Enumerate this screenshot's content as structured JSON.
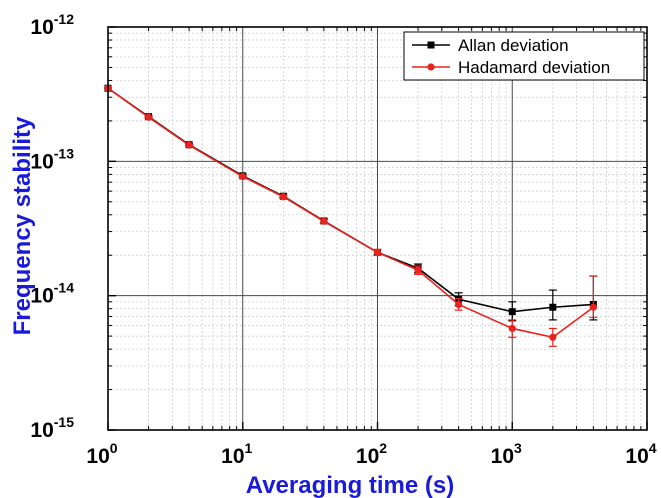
{
  "chart_data": {
    "type": "line",
    "title": "",
    "xlabel": "Averaging time (s)",
    "ylabel": "Frequency stability",
    "x_scale": "log",
    "y_scale": "log",
    "xlim": [
      1,
      10000
    ],
    "ylim": [
      1e-15,
      1e-12
    ],
    "x_ticks": [
      {
        "value": 1,
        "base": "10",
        "exp": "0"
      },
      {
        "value": 10,
        "base": "10",
        "exp": "1"
      },
      {
        "value": 100,
        "base": "10",
        "exp": "2"
      },
      {
        "value": 1000,
        "base": "10",
        "exp": "3"
      },
      {
        "value": 10000,
        "base": "10",
        "exp": "4"
      }
    ],
    "y_ticks": [
      {
        "value": 1e-15,
        "base": "10",
        "exp": "-15"
      },
      {
        "value": 1e-14,
        "base": "10",
        "exp": "-14"
      },
      {
        "value": 1e-13,
        "base": "10",
        "exp": "-13"
      },
      {
        "value": 1e-12,
        "base": "10",
        "exp": "-12"
      }
    ],
    "grid": true,
    "legend_position": "top-right",
    "series": [
      {
        "name": "Allan deviation",
        "color": "#000000",
        "marker": "square",
        "x": [
          1,
          2,
          4,
          10,
          20,
          40,
          100,
          200,
          400,
          1000,
          2000,
          4000
        ],
        "y": [
          3.5e-13,
          2.15e-13,
          1.33e-13,
          7.8e-14,
          5.5e-14,
          3.6e-14,
          2.1e-14,
          1.6e-14,
          9.4e-15,
          7.6e-15,
          8.2e-15,
          8.6e-15
        ],
        "err_low": [
          3.46e-13,
          2.12e-13,
          1.31e-13,
          7.65e-14,
          5.38e-14,
          3.48e-14,
          2e-14,
          1.48e-14,
          8.4e-15,
          6.5e-15,
          6.6e-15,
          6.6e-15
        ],
        "err_high": [
          3.54e-13,
          2.18e-13,
          1.35e-13,
          7.95e-14,
          5.62e-14,
          3.72e-14,
          2.2e-14,
          1.72e-14,
          1.05e-14,
          9e-15,
          1.1e-14,
          1.4e-14
        ]
      },
      {
        "name": "Hadamard deviation",
        "color": "#e8231e",
        "marker": "circle",
        "x": [
          1,
          2,
          4,
          10,
          20,
          40,
          100,
          200,
          400,
          1000,
          2000,
          4000
        ],
        "y": [
          3.5e-13,
          2.13e-13,
          1.32e-13,
          7.7e-14,
          5.45e-14,
          3.58e-14,
          2.1e-14,
          1.55e-14,
          8.6e-15,
          5.7e-15,
          4.9e-15,
          8.2e-15
        ],
        "err_low": [
          3.46e-13,
          2.1e-13,
          1.3e-13,
          7.55e-14,
          5.33e-14,
          3.46e-14,
          1.99e-14,
          1.44e-14,
          7.8e-15,
          4.9e-15,
          4.2e-15,
          6.9e-15
        ],
        "err_high": [
          3.54e-13,
          2.16e-13,
          1.34e-13,
          7.85e-14,
          5.57e-14,
          3.7e-14,
          2.21e-14,
          1.66e-14,
          9.5e-15,
          6.6e-15,
          5.7e-15,
          1.4e-14
        ]
      }
    ]
  }
}
